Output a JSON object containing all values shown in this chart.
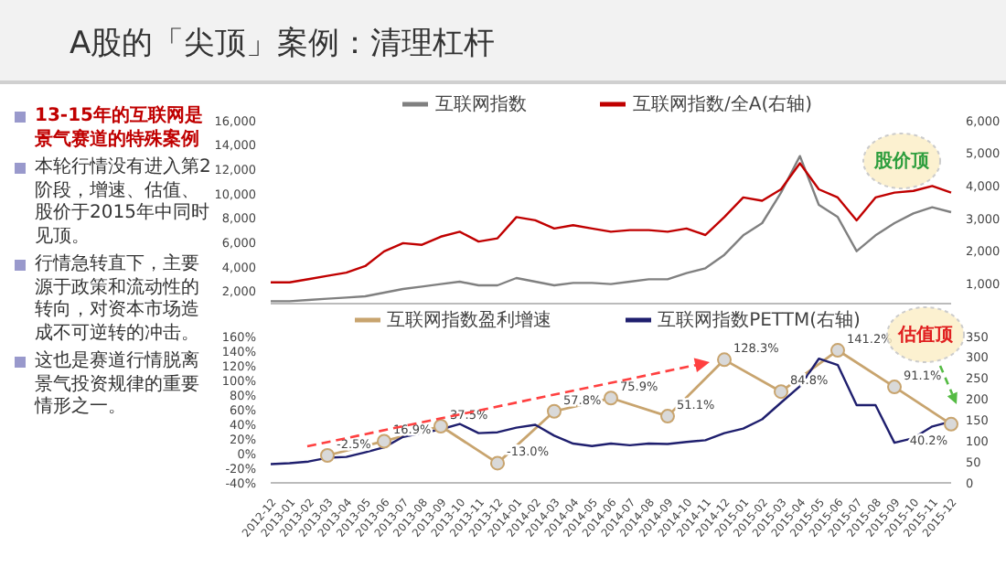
{
  "chart_data": [
    {
      "type": "line",
      "title": "A股的「尖顶」案例：清理杠杆",
      "annotations": [
        "13-15年的互联网是景气赛道的特殊案例",
        "本轮行情没有进入第2阶段，增速、估值、股价于2015年中同时见顶。",
        "行情急转直下，主要源于政策和流动性的转向，对资本市场造成不可逆转的冲击。",
        "这也是赛道行情脱离景气投资规律的重要情形之一。",
        "股价顶"
      ],
      "categories": [
        null,
        null,
        null,
        null,
        null,
        null,
        null,
        null,
        null,
        null,
        null,
        null,
        null,
        null,
        null,
        null,
        null,
        null,
        null,
        null,
        null,
        null,
        null,
        null,
        null,
        null,
        null,
        null,
        null,
        null,
        null,
        null,
        null,
        null,
        null,
        null,
        null
      ],
      "series": [
        {
          "name": "互联网指数",
          "color": "#808080",
          "values": [
            1200,
            1200,
            1300,
            1400,
            1500,
            1600,
            1900,
            2200,
            2400,
            2600,
            2800,
            2500,
            2500,
            3100,
            2800,
            2500,
            2700,
            2700,
            2600,
            2800,
            3000,
            3000,
            3500,
            3900,
            5000,
            6600,
            7600,
            10100,
            13100,
            9100,
            8100,
            5300,
            6600,
            7600,
            8400,
            8900,
            8500
          ]
        },
        {
          "name": "互联网指数/全A(右轴)",
          "color": "#c00000",
          "axis": "y2",
          "values": [
            1050,
            1050,
            1150,
            1250,
            1350,
            1550,
            2000,
            2250,
            2200,
            2450,
            2600,
            2300,
            2400,
            3050,
            2950,
            2700,
            2800,
            2700,
            2600,
            2650,
            2650,
            2600,
            2700,
            2500,
            3050,
            3650,
            3550,
            3900,
            4700,
            3900,
            3650,
            2950,
            3650,
            3800,
            3850,
            4000,
            3800
          ]
        }
      ],
      "ylim": [
        1000,
        16000
      ],
      "yticks": [
        {
          "value": 2000,
          "label": "2,000"
        },
        {
          "value": 4000,
          "label": "4,000"
        },
        {
          "value": 6000,
          "label": "6,000"
        },
        {
          "value": 8000,
          "label": "8,000"
        },
        {
          "value": 10000,
          "label": "10,000"
        },
        {
          "value": 12000,
          "label": "12,000"
        },
        {
          "value": 14000,
          "label": "14,000"
        },
        {
          "value": 16000,
          "label": "16,000"
        }
      ],
      "y2lim": [
        400,
        6000
      ],
      "y2ticks": [
        {
          "value": 1000,
          "label": "1,000"
        },
        {
          "value": 2000,
          "label": "2,000"
        },
        {
          "value": 3000,
          "label": "3,000"
        },
        {
          "value": 4000,
          "label": "4,000"
        },
        {
          "value": 5000,
          "label": "5,000"
        },
        {
          "value": 6000,
          "label": "6,000"
        }
      ],
      "tick_labels": "y",
      "legend": "top",
      "grid": false,
      "marker": "none"
    },
    {
      "type": "line",
      "annotations": [
        "估值顶"
      ],
      "categories": [
        "2012-12",
        "2013-01",
        "2013-02",
        "2013-03",
        "2013-04",
        "2013-05",
        "2013-06",
        "2013-07",
        "2013-08",
        "2013-09",
        "2013-10",
        "2013-11",
        "2013-12",
        "2014-01",
        "2014-02",
        "2014-03",
        "2014-04",
        "2014-05",
        "2014-06",
        "2014-07",
        "2014-08",
        "2014-09",
        "2014-10",
        "2014-11",
        "2014-12",
        "2015-01",
        "2015-02",
        "2015-03",
        "2015-04",
        "2015-05",
        "2015-06",
        "2015-07",
        "2015-08",
        "2015-09",
        "2015-10",
        "2015-11",
        "2015-12"
      ],
      "series": [
        {
          "name": "互联网指数盈利增速",
          "color": "#c8a46e",
          "marker": "circle",
          "values": [
            null,
            null,
            null,
            -2.5,
            null,
            null,
            16.9,
            null,
            null,
            37.5,
            null,
            null,
            -13.0,
            null,
            null,
            57.8,
            null,
            null,
            75.9,
            null,
            null,
            51.1,
            null,
            null,
            128.3,
            null,
            null,
            84.8,
            null,
            null,
            141.2,
            null,
            null,
            91.1,
            null,
            null,
            40.2
          ],
          "value_labels": [
            null,
            null,
            null,
            "-2.5%",
            null,
            null,
            "16.9%",
            null,
            null,
            "37.5%",
            null,
            null,
            "-13.0%",
            null,
            null,
            "57.8%",
            null,
            null,
            "75.9%",
            null,
            null,
            "51.1%",
            null,
            null,
            "128.3%",
            null,
            null,
            "84.8%",
            null,
            null,
            "141.2%",
            null,
            null,
            "91.1%",
            null,
            null,
            "40.2%"
          ]
        },
        {
          "name": "互联网指数PETTM(右轴)",
          "color": "#1f1f6e",
          "axis": "y2",
          "values": [
            45,
            47,
            51,
            60,
            62,
            73,
            85,
            110,
            119,
            128,
            141,
            119,
            121,
            132,
            139,
            113,
            94,
            88,
            94,
            90,
            94,
            93,
            98,
            102,
            119,
            130,
            152,
            192,
            231,
            297,
            282,
            186,
            186,
            96,
            107,
            135,
            147
          ]
        }
      ],
      "ylim": [
        -40,
        160
      ],
      "yticks": [
        {
          "value": -40,
          "label": "-40%"
        },
        {
          "value": -20,
          "label": "-20%"
        },
        {
          "value": 0,
          "label": "0%"
        },
        {
          "value": 20,
          "label": "20%"
        },
        {
          "value": 40,
          "label": "40%"
        },
        {
          "value": 60,
          "label": "60%"
        },
        {
          "value": 80,
          "label": "80%"
        },
        {
          "value": 100,
          "label": "100%"
        },
        {
          "value": 120,
          "label": "120%"
        },
        {
          "value": 140,
          "label": "140%"
        },
        {
          "value": 160,
          "label": "160%"
        }
      ],
      "y2lim": [
        0,
        350
      ],
      "y2ticks": [
        0,
        50,
        100,
        150,
        200,
        250,
        300,
        350
      ],
      "legend": "top",
      "grid": false,
      "marker": "none"
    }
  ]
}
